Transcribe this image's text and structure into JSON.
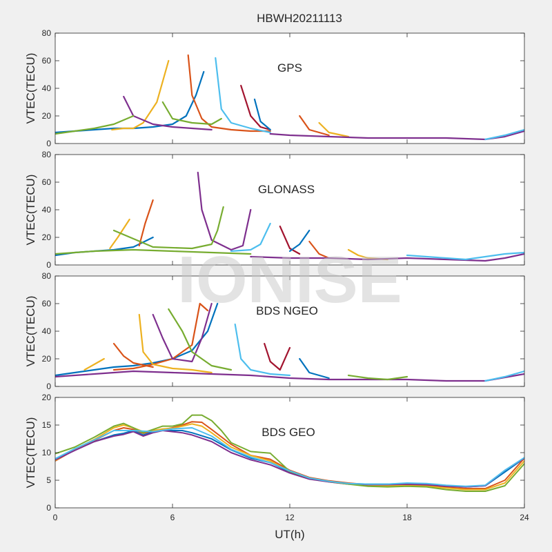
{
  "title": "HBWH20211113",
  "watermark": "IONISE",
  "xlabel": "UT(h)",
  "xlim": [
    0,
    24
  ],
  "xticks": [
    0,
    6,
    12,
    18,
    24
  ],
  "colors": [
    "#0072BD",
    "#D95319",
    "#EDB120",
    "#7E2F8E",
    "#77AC30",
    "#4DBEEE",
    "#A2142F"
  ],
  "chart_data": [
    {
      "type": "line",
      "title": "GPS",
      "ylabel": "VTEC(TECU)",
      "ylim": [
        0,
        80
      ],
      "yticks": [
        0,
        20,
        40,
        60,
        80
      ],
      "series": [
        {
          "x": [
            0,
            1,
            2,
            3,
            4,
            5,
            6,
            6.7,
            7.2,
            7.6
          ],
          "y": [
            8,
            9,
            10,
            11,
            11,
            12,
            14,
            20,
            35,
            52
          ]
        },
        {
          "x": [
            6.8,
            7,
            7.5,
            8,
            9,
            10,
            11
          ],
          "y": [
            64,
            35,
            18,
            12,
            10,
            9,
            9
          ]
        },
        {
          "x": [
            2.9,
            3.5,
            4,
            4.5,
            5.2,
            5.8
          ],
          "y": [
            10,
            11,
            11,
            15,
            30,
            60
          ]
        },
        {
          "x": [
            3.5,
            4,
            5,
            6,
            7,
            8
          ],
          "y": [
            34,
            20,
            14,
            12,
            11,
            10
          ]
        },
        {
          "x": [
            5.5,
            6,
            7,
            8,
            8.5
          ],
          "y": [
            30,
            18,
            15,
            14,
            18
          ]
        },
        {
          "x": [
            8.2,
            8.5,
            9,
            10,
            11
          ],
          "y": [
            62,
            25,
            15,
            11,
            8
          ]
        },
        {
          "x": [
            9.5,
            10,
            10.5,
            11
          ],
          "y": [
            42,
            20,
            12,
            10
          ]
        },
        {
          "x": [
            10.2,
            10.5,
            11
          ],
          "y": [
            32,
            16,
            10
          ]
        },
        {
          "x": [
            12.5,
            13,
            14
          ],
          "y": [
            20,
            10,
            6
          ]
        },
        {
          "x": [
            13.5,
            14,
            15
          ],
          "y": [
            15,
            8,
            5
          ]
        },
        {
          "x": [
            11,
            12,
            14,
            16,
            18,
            20,
            22,
            23,
            24
          ],
          "y": [
            7,
            6,
            5,
            4,
            4,
            4,
            3,
            5,
            9
          ]
        },
        {
          "x": [
            0,
            1,
            2,
            3,
            4
          ],
          "y": [
            7,
            9,
            11,
            14,
            20
          ]
        },
        {
          "x": [
            22,
            23,
            24
          ],
          "y": [
            3,
            6,
            10
          ]
        }
      ]
    },
    {
      "type": "line",
      "title": "GLONASS",
      "ylabel": "VTEC(TECU)",
      "ylim": [
        0,
        80
      ],
      "yticks": [
        0,
        20,
        40,
        60,
        80
      ],
      "series": [
        {
          "x": [
            0,
            1,
            2,
            3,
            4,
            5
          ],
          "y": [
            7,
            9,
            10,
            11,
            13,
            20
          ]
        },
        {
          "x": [
            4.3,
            4.6,
            5
          ],
          "y": [
            14,
            30,
            47
          ]
        },
        {
          "x": [
            2.8,
            3.2,
            3.8
          ],
          "y": [
            12,
            20,
            33
          ]
        },
        {
          "x": [
            7.3,
            7.5,
            8,
            9,
            9.6,
            10
          ],
          "y": [
            67,
            40,
            18,
            11,
            14,
            40
          ]
        },
        {
          "x": [
            3,
            5,
            7,
            8,
            8.3,
            8.6
          ],
          "y": [
            25,
            13,
            12,
            15,
            25,
            42
          ]
        },
        {
          "x": [
            9,
            10,
            10.5,
            11
          ],
          "y": [
            10,
            11,
            15,
            30
          ]
        },
        {
          "x": [
            11.5,
            12,
            12.5
          ],
          "y": [
            28,
            12,
            8
          ]
        },
        {
          "x": [
            12,
            12.5,
            13
          ],
          "y": [
            10,
            15,
            25
          ]
        },
        {
          "x": [
            13,
            13.5,
            14
          ],
          "y": [
            17,
            8,
            5
          ]
        },
        {
          "x": [
            15,
            15.5,
            16,
            17
          ],
          "y": [
            11,
            7,
            5,
            4
          ]
        },
        {
          "x": [
            10,
            12,
            14,
            16,
            18,
            20,
            22,
            23,
            24
          ],
          "y": [
            6,
            5,
            5,
            4,
            5,
            4,
            3,
            5,
            8
          ]
        },
        {
          "x": [
            0,
            2,
            4,
            6,
            8,
            10
          ],
          "y": [
            8,
            10,
            11,
            10,
            9,
            8
          ]
        },
        {
          "x": [
            18,
            19,
            20,
            21,
            22,
            23,
            24
          ],
          "y": [
            7,
            6,
            5,
            4,
            6,
            8,
            9
          ]
        }
      ]
    },
    {
      "type": "line",
      "title": "BDS NGEO",
      "ylabel": "VTEC(TECU)",
      "ylim": [
        0,
        80
      ],
      "yticks": [
        0,
        20,
        40,
        60,
        80
      ],
      "series": [
        {
          "x": [
            0,
            1,
            2,
            3,
            4,
            5,
            6,
            7,
            7.8,
            8.3
          ],
          "y": [
            8,
            10,
            12,
            14,
            15,
            17,
            20,
            26,
            40,
            60
          ]
        },
        {
          "x": [
            3,
            4,
            5,
            6,
            7,
            7.4,
            7.8
          ],
          "y": [
            12,
            13,
            16,
            20,
            30,
            60,
            55
          ]
        },
        {
          "x": [
            4.3,
            4.5,
            5,
            6,
            7,
            8
          ],
          "y": [
            52,
            25,
            16,
            13,
            12,
            10
          ]
        },
        {
          "x": [
            5,
            5.5,
            6,
            7,
            7.5,
            8
          ],
          "y": [
            52,
            35,
            20,
            18,
            35,
            60
          ]
        },
        {
          "x": [
            5.8,
            6.5,
            7,
            8,
            9
          ],
          "y": [
            56,
            40,
            25,
            15,
            12
          ]
        },
        {
          "x": [
            9.2,
            9.5,
            10,
            11,
            12
          ],
          "y": [
            45,
            20,
            12,
            9,
            8
          ]
        },
        {
          "x": [
            10.7,
            11,
            11.5,
            12
          ],
          "y": [
            31,
            18,
            12,
            28
          ]
        },
        {
          "x": [
            12.5,
            13,
            14
          ],
          "y": [
            20,
            10,
            6
          ]
        },
        {
          "x": [
            3,
            3.5,
            4,
            5
          ],
          "y": [
            31,
            22,
            17,
            14
          ]
        },
        {
          "x": [
            1.5,
            2,
            2.5
          ],
          "y": [
            12,
            16,
            20
          ]
        },
        {
          "x": [
            0,
            2,
            4,
            6,
            8,
            10,
            12,
            14,
            16,
            18,
            20,
            22,
            24
          ],
          "y": [
            7,
            9,
            11,
            10,
            9,
            8,
            6,
            5,
            5,
            5,
            4,
            4,
            9
          ]
        },
        {
          "x": [
            15,
            16,
            17,
            18
          ],
          "y": [
            8,
            6,
            5,
            7
          ]
        },
        {
          "x": [
            22,
            23,
            24
          ],
          "y": [
            4,
            7,
            11
          ]
        }
      ]
    },
    {
      "type": "line",
      "title": "BDS GEO",
      "ylabel": "VTEC(TECU)",
      "ylim": [
        0,
        20
      ],
      "yticks": [
        0,
        5,
        10,
        15,
        20
      ],
      "series": [
        {
          "x": [
            0,
            1,
            2,
            3,
            3.5,
            4,
            4.5,
            5,
            5.5,
            6,
            6.5,
            7,
            8,
            9,
            10,
            11,
            12,
            13,
            14,
            15,
            16,
            17,
            18,
            19,
            20,
            21,
            22,
            23,
            24
          ],
          "y": [
            8.8,
            10.5,
            12,
            13.2,
            13.5,
            14,
            13.2,
            13.8,
            14.2,
            14,
            14,
            13.6,
            12.5,
            10.5,
            9,
            8.2,
            6.5,
            5.3,
            4.8,
            4.4,
            4.3,
            4.3,
            4.4,
            4.3,
            4,
            3.8,
            4,
            6.5,
            9
          ]
        },
        {
          "x": [
            0,
            1,
            2,
            3,
            3.5,
            4,
            4.5,
            5,
            5.5,
            6,
            6.5,
            7,
            7.5,
            8,
            9,
            10,
            11,
            12,
            13,
            14,
            15,
            16,
            17,
            18,
            19,
            20,
            21,
            22,
            23,
            24
          ],
          "y": [
            8.5,
            10.5,
            12.2,
            14,
            14.5,
            14.2,
            13.5,
            14,
            14.2,
            14.5,
            15,
            15.6,
            15.5,
            14.2,
            11.5,
            9.5,
            8.8,
            6.8,
            5.5,
            4.9,
            4.5,
            4.2,
            4.1,
            4.1,
            4,
            3.7,
            3.5,
            3.5,
            5,
            9
          ]
        },
        {
          "x": [
            0,
            1,
            2,
            3,
            3.5,
            4,
            4.5,
            5,
            5.5,
            6,
            6.5,
            7,
            7.5,
            8,
            9,
            10,
            11,
            12,
            13,
            14,
            15,
            16,
            17,
            18,
            19,
            20,
            21,
            22,
            23,
            24
          ],
          "y": [
            8.6,
            10.6,
            12.4,
            14.5,
            15,
            14.5,
            13.8,
            14,
            14.3,
            14.4,
            14.8,
            15.2,
            14.8,
            13.6,
            11,
            9.5,
            8.5,
            6.6,
            5.4,
            4.7,
            4.3,
            4.1,
            4,
            4,
            3.9,
            3.6,
            3.3,
            3.3,
            4.5,
            8.5
          ]
        },
        {
          "x": [
            0,
            1,
            2,
            3,
            3.5,
            4,
            4.5,
            5,
            5.5,
            6,
            6.5,
            7,
            8,
            9,
            10,
            11,
            12,
            13,
            14,
            15,
            16,
            17,
            18,
            19,
            20,
            21,
            22,
            23,
            24
          ],
          "y": [
            8.7,
            10.4,
            12,
            13,
            13.3,
            13.8,
            13,
            13.6,
            14,
            13.8,
            13.6,
            13.2,
            12,
            10,
            8.7,
            7.8,
            6.3,
            5.2,
            4.7,
            4.3,
            4.2,
            4.2,
            4.3,
            4.2,
            3.9,
            3.8,
            4,
            6.8,
            9
          ]
        },
        {
          "x": [
            0,
            1,
            2,
            3,
            3.5,
            4,
            4.5,
            5,
            5.5,
            6,
            6.5,
            7,
            7.5,
            8,
            8.5,
            9,
            10,
            11,
            12,
            13,
            14,
            15,
            16,
            17,
            18,
            19,
            20,
            21,
            22,
            23,
            24
          ],
          "y": [
            9.8,
            11,
            12.8,
            14.8,
            15.3,
            14.5,
            13.6,
            14.2,
            14.8,
            14.8,
            15.2,
            16.8,
            16.8,
            15.8,
            14,
            11.8,
            10.2,
            9.9,
            6.6,
            5.4,
            4.8,
            4.3,
            3.9,
            3.8,
            3.9,
            3.8,
            3.3,
            3,
            3,
            4,
            8
          ]
        },
        {
          "x": [
            0,
            1,
            2,
            3,
            4,
            5,
            6,
            7,
            8,
            9,
            10,
            11,
            12,
            13,
            14,
            15,
            16,
            17,
            18,
            19,
            20,
            21,
            22,
            23,
            24
          ],
          "y": [
            8.9,
            10.7,
            12.3,
            14,
            14,
            13.8,
            14.3,
            14.5,
            13,
            10.6,
            9.2,
            8.2,
            6.7,
            5.4,
            4.8,
            4.4,
            4.3,
            4.3,
            4.5,
            4.4,
            4.1,
            3.9,
            4.1,
            6.8,
            9.1
          ]
        }
      ]
    }
  ]
}
